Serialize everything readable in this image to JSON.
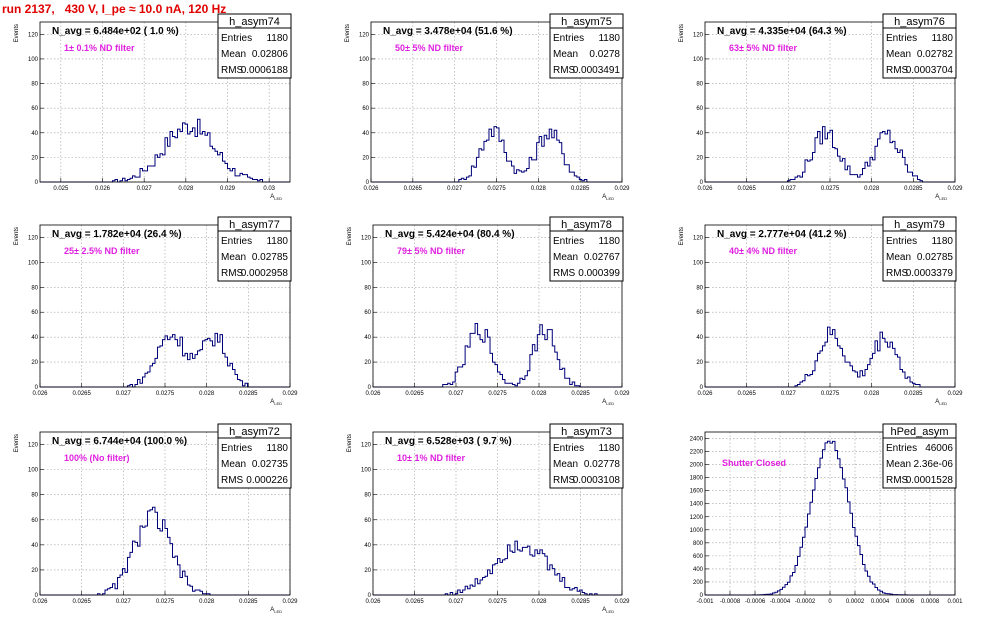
{
  "header": {
    "run_label": "run 2137,   430 V, I_pe ≈ 10.0 nA, 120 Hz"
  },
  "chart_data": [
    {
      "type": "histogram",
      "name": "h_asym74",
      "navg": "N_avg = 6.484e+02 ( 1.0 %)",
      "filter": "1± 0.1% ND filter",
      "stats": {
        "Entries": "1180",
        "Mean": "0.02806",
        "RMS": "0.0006188"
      },
      "ylabel": "Events",
      "xlabel": "A_LED",
      "xlim": [
        0.0245,
        0.0305
      ],
      "ylim": [
        0,
        130
      ],
      "xticks": [
        "0.025",
        "0.026",
        "0.027",
        "0.028",
        "0.029",
        "0.03"
      ],
      "yticks": [
        "0",
        "20",
        "40",
        "60",
        "80",
        "100",
        "120"
      ],
      "shape": [
        {
          "mu": 0.02808,
          "sigma": 0.00061,
          "a": 46
        }
      ],
      "grid": true
    },
    {
      "type": "histogram",
      "name": "h_asym75",
      "navg": "N_avg = 3.478e+04 (51.6 %)",
      "filter": "50± 5% ND filter",
      "stats": {
        "Entries": "1180",
        "Mean": "0.0278",
        "RMS": "0.0003491"
      },
      "ylabel": "Events",
      "xlabel": "A_LED",
      "xlim": [
        0.026,
        0.029
      ],
      "ylim": [
        0,
        130
      ],
      "xticks": [
        "0.026",
        "0.0265",
        "0.027",
        "0.0275",
        "0.028",
        "0.0285",
        "0.029"
      ],
      "yticks": [
        "0",
        "20",
        "40",
        "60",
        "80",
        "100",
        "120"
      ],
      "shape": [
        {
          "mu": 0.02746,
          "sigma": 0.00015,
          "a": 42
        },
        {
          "mu": 0.02813,
          "sigma": 0.00016,
          "a": 40
        }
      ],
      "grid": true
    },
    {
      "type": "histogram",
      "name": "h_asym76",
      "navg": "N_avg = 4.335e+04 (64.3 %)",
      "filter": "63± 5% ND filter",
      "stats": {
        "Entries": "1180",
        "Mean": "0.02782",
        "RMS": "0.0003704"
      },
      "ylabel": "Events",
      "xlabel": "A_LED",
      "xlim": [
        0.026,
        0.029
      ],
      "ylim": [
        0,
        130
      ],
      "xticks": [
        "0.026",
        "0.0265",
        "0.027",
        "0.0275",
        "0.028",
        "0.0285",
        "0.029"
      ],
      "yticks": [
        "0",
        "20",
        "40",
        "60",
        "80",
        "100",
        "120"
      ],
      "shape": [
        {
          "mu": 0.02745,
          "sigma": 0.00016,
          "a": 40
        },
        {
          "mu": 0.02818,
          "sigma": 0.00016,
          "a": 38
        }
      ],
      "grid": true
    },
    {
      "type": "histogram",
      "name": "h_asym77",
      "navg": "N_avg = 1.782e+04 (26.4 %)",
      "filter": "25± 2.5% ND filter",
      "stats": {
        "Entries": "1180",
        "Mean": "0.02785",
        "RMS": "0.0002958"
      },
      "ylabel": "Events",
      "xlabel": "A_LED",
      "xlim": [
        0.026,
        0.029
      ],
      "ylim": [
        0,
        130
      ],
      "xticks": [
        "0.026",
        "0.0265",
        "0.027",
        "0.0275",
        "0.028",
        "0.0285",
        "0.029"
      ],
      "yticks": [
        "0",
        "20",
        "40",
        "60",
        "80",
        "100",
        "120"
      ],
      "shape": [
        {
          "mu": 0.02758,
          "sigma": 0.00018,
          "a": 42
        },
        {
          "mu": 0.0281,
          "sigma": 0.00015,
          "a": 40
        }
      ],
      "grid": true
    },
    {
      "type": "histogram",
      "name": "h_asym78",
      "navg": "N_avg = 5.424e+04 (80.4 %)",
      "filter": "79± 5% ND filter",
      "stats": {
        "Entries": "1180",
        "Mean": "0.02767",
        "RMS": "0.000399"
      },
      "ylabel": "Events",
      "xlabel": "A_LED",
      "xlim": [
        0.026,
        0.029
      ],
      "ylim": [
        0,
        130
      ],
      "xticks": [
        "0.026",
        "0.0265",
        "0.027",
        "0.0275",
        "0.028",
        "0.0285",
        "0.029"
      ],
      "yticks": [
        "0",
        "20",
        "40",
        "60",
        "80",
        "100",
        "120"
      ],
      "shape": [
        {
          "mu": 0.02728,
          "sigma": 0.00015,
          "a": 46
        },
        {
          "mu": 0.02807,
          "sigma": 0.00014,
          "a": 46
        }
      ],
      "grid": true
    },
    {
      "type": "histogram",
      "name": "h_asym79",
      "navg": "N_avg = 2.777e+04 (41.2 %)",
      "filter": "40± 4% ND filter",
      "stats": {
        "Entries": "1180",
        "Mean": "0.02785",
        "RMS": "0.0003379"
      },
      "ylabel": "Events",
      "xlabel": "A_LED",
      "xlim": [
        0.026,
        0.029
      ],
      "ylim": [
        0,
        130
      ],
      "xticks": [
        "0.026",
        "0.0265",
        "0.027",
        "0.0275",
        "0.028",
        "0.0285",
        "0.029"
      ],
      "yticks": [
        "0",
        "20",
        "40",
        "60",
        "80",
        "100",
        "120"
      ],
      "shape": [
        {
          "mu": 0.02752,
          "sigma": 0.00016,
          "a": 42
        },
        {
          "mu": 0.02816,
          "sigma": 0.00015,
          "a": 40
        }
      ],
      "grid": true
    },
    {
      "type": "histogram",
      "name": "h_asym72",
      "navg": "N_avg = 6.744e+04 (100.0 %)",
      "filter": "100% (No filter)",
      "stats": {
        "Entries": "1180",
        "Mean": "0.02735",
        "RMS": "0.000226"
      },
      "ylabel": "Events",
      "xlabel": "A_LED",
      "xlim": [
        0.026,
        0.029
      ],
      "ylim": [
        0,
        130
      ],
      "xticks": [
        "0.026",
        "0.0265",
        "0.027",
        "0.0275",
        "0.028",
        "0.0285",
        "0.029"
      ],
      "yticks": [
        "0",
        "20",
        "40",
        "60",
        "80",
        "100",
        "120"
      ],
      "shape": [
        {
          "mu": 0.02735,
          "sigma": 0.00022,
          "a": 62
        }
      ],
      "grid": true
    },
    {
      "type": "histogram",
      "name": "h_asym73",
      "navg": "N_avg = 6.528e+03 ( 9.7 %)",
      "filter": "10± 1% ND filter",
      "stats": {
        "Entries": "1180",
        "Mean": "0.02778",
        "RMS": "0.0003108"
      },
      "ylabel": "Events",
      "xlabel": "A_LED",
      "xlim": [
        0.026,
        0.029
      ],
      "ylim": [
        0,
        130
      ],
      "xticks": [
        "0.026",
        "0.0265",
        "0.027",
        "0.0275",
        "0.028",
        "0.0285",
        "0.029"
      ],
      "yticks": [
        "0",
        "20",
        "40",
        "60",
        "80",
        "100",
        "120"
      ],
      "shape": [
        {
          "mu": 0.02778,
          "sigma": 0.00031,
          "a": 42
        }
      ],
      "grid": true
    },
    {
      "type": "histogram",
      "name": "hPed_asym",
      "navg": "",
      "filter": "Shutter Closed",
      "stats": {
        "Entries": "46006",
        "Mean": "2.36e-06",
        "RMS": "0.0001528"
      },
      "ylabel": "",
      "xlabel": "",
      "xlim": [
        -0.001,
        0.001
      ],
      "ylim": [
        0,
        2500
      ],
      "xticks": [
        "-0.001",
        "-0.0008",
        "-0.0006",
        "-0.0004",
        "-0.0002",
        "0",
        "0.0002",
        "0.0004",
        "0.0006",
        "0.0008",
        "0.001"
      ],
      "yticks": [
        "0",
        "200",
        "400",
        "600",
        "800",
        "1000",
        "1200",
        "1400",
        "1600",
        "1800",
        "2000",
        "2200",
        "2400"
      ],
      "shape": [
        {
          "mu": 0.0,
          "sigma": 0.00015,
          "a": 2380
        }
      ],
      "grid": true
    }
  ],
  "colors": {
    "title": "#e00000",
    "line": "#00007a",
    "filter_text": "#e020e0",
    "grid": "#a0a0a0"
  }
}
